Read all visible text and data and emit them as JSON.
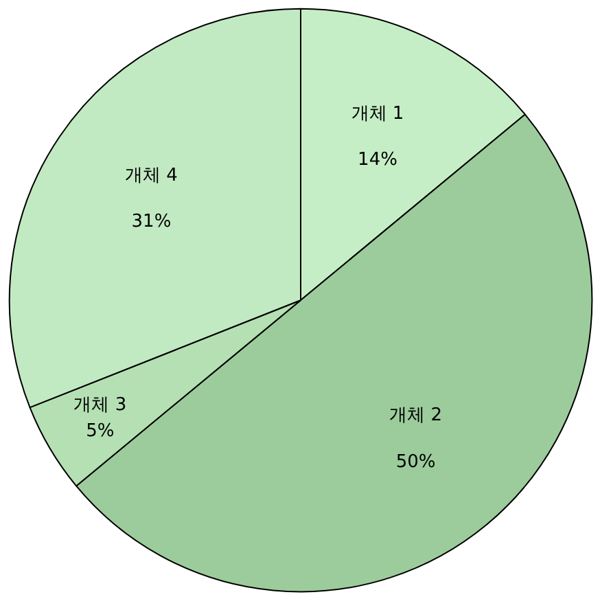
{
  "chart_data": {
    "type": "pie",
    "categories": [
      "개체 1",
      "개체 2",
      "개체 3",
      "개체 4"
    ],
    "values": [
      14,
      50,
      5,
      31
    ],
    "colors": [
      "#c6eec6",
      "#9ccc9c",
      "#b4e0b4",
      "#c2eac2"
    ],
    "value_labels": [
      "14%",
      "50%",
      "5%",
      "31%"
    ]
  }
}
